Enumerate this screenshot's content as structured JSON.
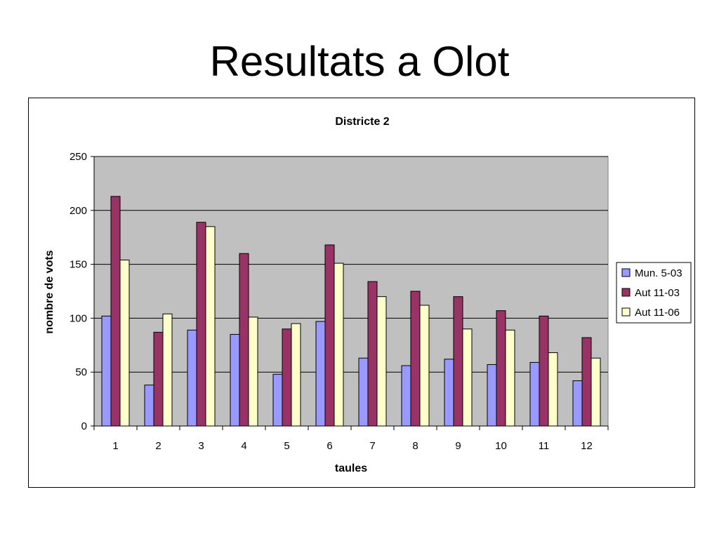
{
  "slide": {
    "title": "Resultats a Olot"
  },
  "chart_data": {
    "type": "bar",
    "title": "Districte 2",
    "xlabel": "taules",
    "ylabel": "nombre de vots",
    "categories": [
      "1",
      "2",
      "3",
      "4",
      "5",
      "6",
      "7",
      "8",
      "9",
      "10",
      "11",
      "12"
    ],
    "ylim": [
      0,
      250
    ],
    "yticks": [
      0,
      50,
      100,
      150,
      200,
      250
    ],
    "grid": true,
    "legend_position": "right",
    "series": [
      {
        "name": "Mun. 5-03",
        "color": "#9999ff",
        "values": [
          102,
          38,
          89,
          85,
          48,
          97,
          63,
          56,
          62,
          57,
          59,
          42
        ]
      },
      {
        "name": "Aut 11-03",
        "color": "#993366",
        "values": [
          213,
          87,
          189,
          160,
          90,
          168,
          134,
          125,
          120,
          107,
          102,
          82
        ]
      },
      {
        "name": "Aut 11-06",
        "color": "#ffffcc",
        "values": [
          154,
          104,
          185,
          101,
          95,
          151,
          120,
          112,
          90,
          89,
          68,
          63
        ]
      }
    ],
    "plot_background": "#c0c0c0"
  }
}
